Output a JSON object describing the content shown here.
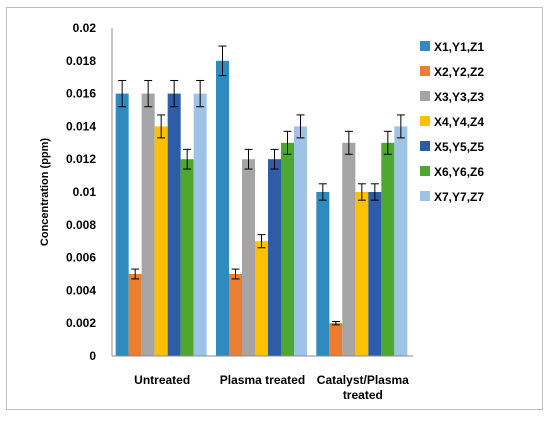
{
  "chart_data": {
    "type": "bar",
    "title": "",
    "xlabel": "",
    "ylabel": "Concentration (ppm)",
    "ylim": [
      0,
      0.02
    ],
    "yticks": [
      "0",
      "0.002",
      "0.004",
      "0.006",
      "0.008",
      "0.01",
      "0.012",
      "0.014",
      "0.016",
      "0.018",
      "0.02"
    ],
    "ytick_values": [
      0,
      0.002,
      0.004,
      0.006,
      0.008,
      0.01,
      0.012,
      0.014,
      0.016,
      0.018,
      0.02
    ],
    "categories": [
      [
        "Untreated"
      ],
      [
        "Plasma treated"
      ],
      [
        "Catalyst/Plasma",
        "treated"
      ]
    ],
    "grid": false,
    "legend_position": "right",
    "series": [
      {
        "name": "X1,Y1,Z1",
        "color": "#2E8BC0",
        "values": [
          0.016,
          0.018,
          0.01
        ],
        "errors": [
          0.0008,
          0.0009,
          0.0005
        ]
      },
      {
        "name": "X2,Y2,Z2",
        "color": "#ED7D31",
        "values": [
          0.005,
          0.005,
          0.002
        ],
        "errors": [
          0.0003,
          0.0003,
          0.0001
        ]
      },
      {
        "name": "X3,Y3,Z3",
        "color": "#A5A5A5",
        "values": [
          0.016,
          0.012,
          0.013
        ],
        "errors": [
          0.0008,
          0.0006,
          0.0007
        ]
      },
      {
        "name": "X4,Y4,Z4",
        "color": "#FFC000",
        "values": [
          0.014,
          0.007,
          0.01
        ],
        "errors": [
          0.0007,
          0.0004,
          0.0005
        ]
      },
      {
        "name": "X5,Y5,Z5",
        "color": "#2F5CA8",
        "values": [
          0.016,
          0.012,
          0.01
        ],
        "errors": [
          0.0008,
          0.0006,
          0.0005
        ]
      },
      {
        "name": "X6,Y6,Z6",
        "color": "#4EA72E",
        "values": [
          0.012,
          0.013,
          0.013
        ],
        "errors": [
          0.0006,
          0.0007,
          0.0007
        ]
      },
      {
        "name": "X7,Y7,Z7",
        "color": "#9DC3E6",
        "values": [
          0.016,
          0.014,
          0.014
        ],
        "errors": [
          0.0008,
          0.0007,
          0.0007
        ]
      }
    ]
  }
}
